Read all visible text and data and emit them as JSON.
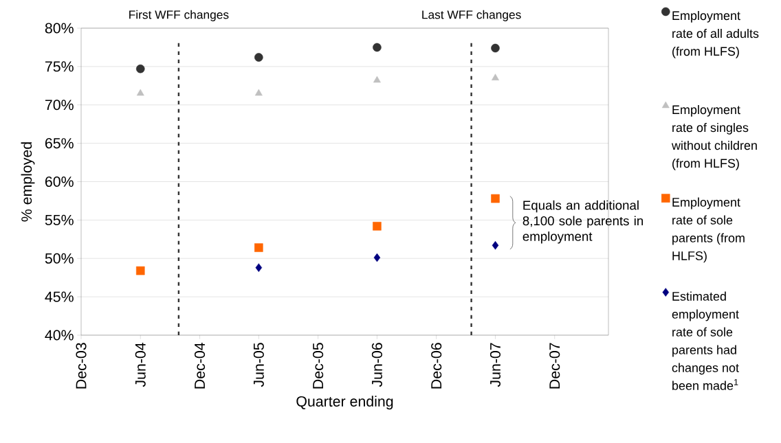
{
  "chart_data": {
    "type": "scatter",
    "xlabel": "Quarter ending",
    "ylabel": "% employed",
    "x": [
      "2004-06",
      "2005-06",
      "2006-06",
      "2007-06"
    ],
    "series": [
      {
        "name": "Employment rate of all adults (from HLFS)",
        "color": "#333333",
        "marker": "circle",
        "values": [
          74.7,
          76.2,
          77.5,
          77.4
        ]
      },
      {
        "name": "Employment rate of singles without children (from HLFS)",
        "color": "#c0c0c0",
        "marker": "triangle",
        "values": [
          71.5,
          71.5,
          73.2,
          73.5
        ]
      },
      {
        "name": "Employment rate of sole parents (from HLFS)",
        "color": "#ff6600",
        "marker": "square",
        "values": [
          48.4,
          51.4,
          54.2,
          57.8
        ]
      },
      {
        "name": "Estimated employment rate of sole parents had changes not been made$^{1}$",
        "color": "#000080",
        "marker": "diamond",
        "values": [
          null,
          48.8,
          50.1,
          51.7
        ]
      }
    ],
    "xlim": [
      "2003-12",
      "2008-05-15"
    ],
    "xticks": [
      {
        "value": "2003-12",
        "label": "Dec-03"
      },
      {
        "value": "2004-06",
        "label": "Jun-04"
      },
      {
        "value": "2004-12",
        "label": "Dec-04"
      },
      {
        "value": "2005-06",
        "label": "Jun-05"
      },
      {
        "value": "2005-12",
        "label": "Dec-05"
      },
      {
        "value": "2006-06",
        "label": "Jun-06"
      },
      {
        "value": "2006-12",
        "label": "Dec-06"
      },
      {
        "value": "2007-06",
        "label": "Jun-07"
      },
      {
        "value": "2007-12",
        "label": "Dec-07"
      }
    ],
    "ylim": [
      40,
      80
    ],
    "yticks": [
      {
        "value": 40,
        "label": "40%"
      },
      {
        "value": 45,
        "label": "45%"
      },
      {
        "value": 50,
        "label": "50%"
      },
      {
        "value": 55,
        "label": "55%"
      },
      {
        "value": 60,
        "label": "60%"
      },
      {
        "value": 65,
        "label": "65%"
      },
      {
        "value": 70,
        "label": "70%"
      },
      {
        "value": 75,
        "label": "75%"
      },
      {
        "value": 80,
        "label": "80%"
      }
    ],
    "grid": "y",
    "legend": "right",
    "ref_lines": [
      {
        "axis": "x",
        "value": "2004-09-27",
        "label": "First WFF changes",
        "color": "#333333",
        "line_style": "dotted"
      },
      {
        "axis": "x",
        "value": "2007-03-19",
        "label": "Last WFF changes",
        "color": "#333333",
        "line_style": "dotted"
      }
    ],
    "annotations": [
      "Equals an additional 8,100 sole parents in employment"
    ]
  }
}
